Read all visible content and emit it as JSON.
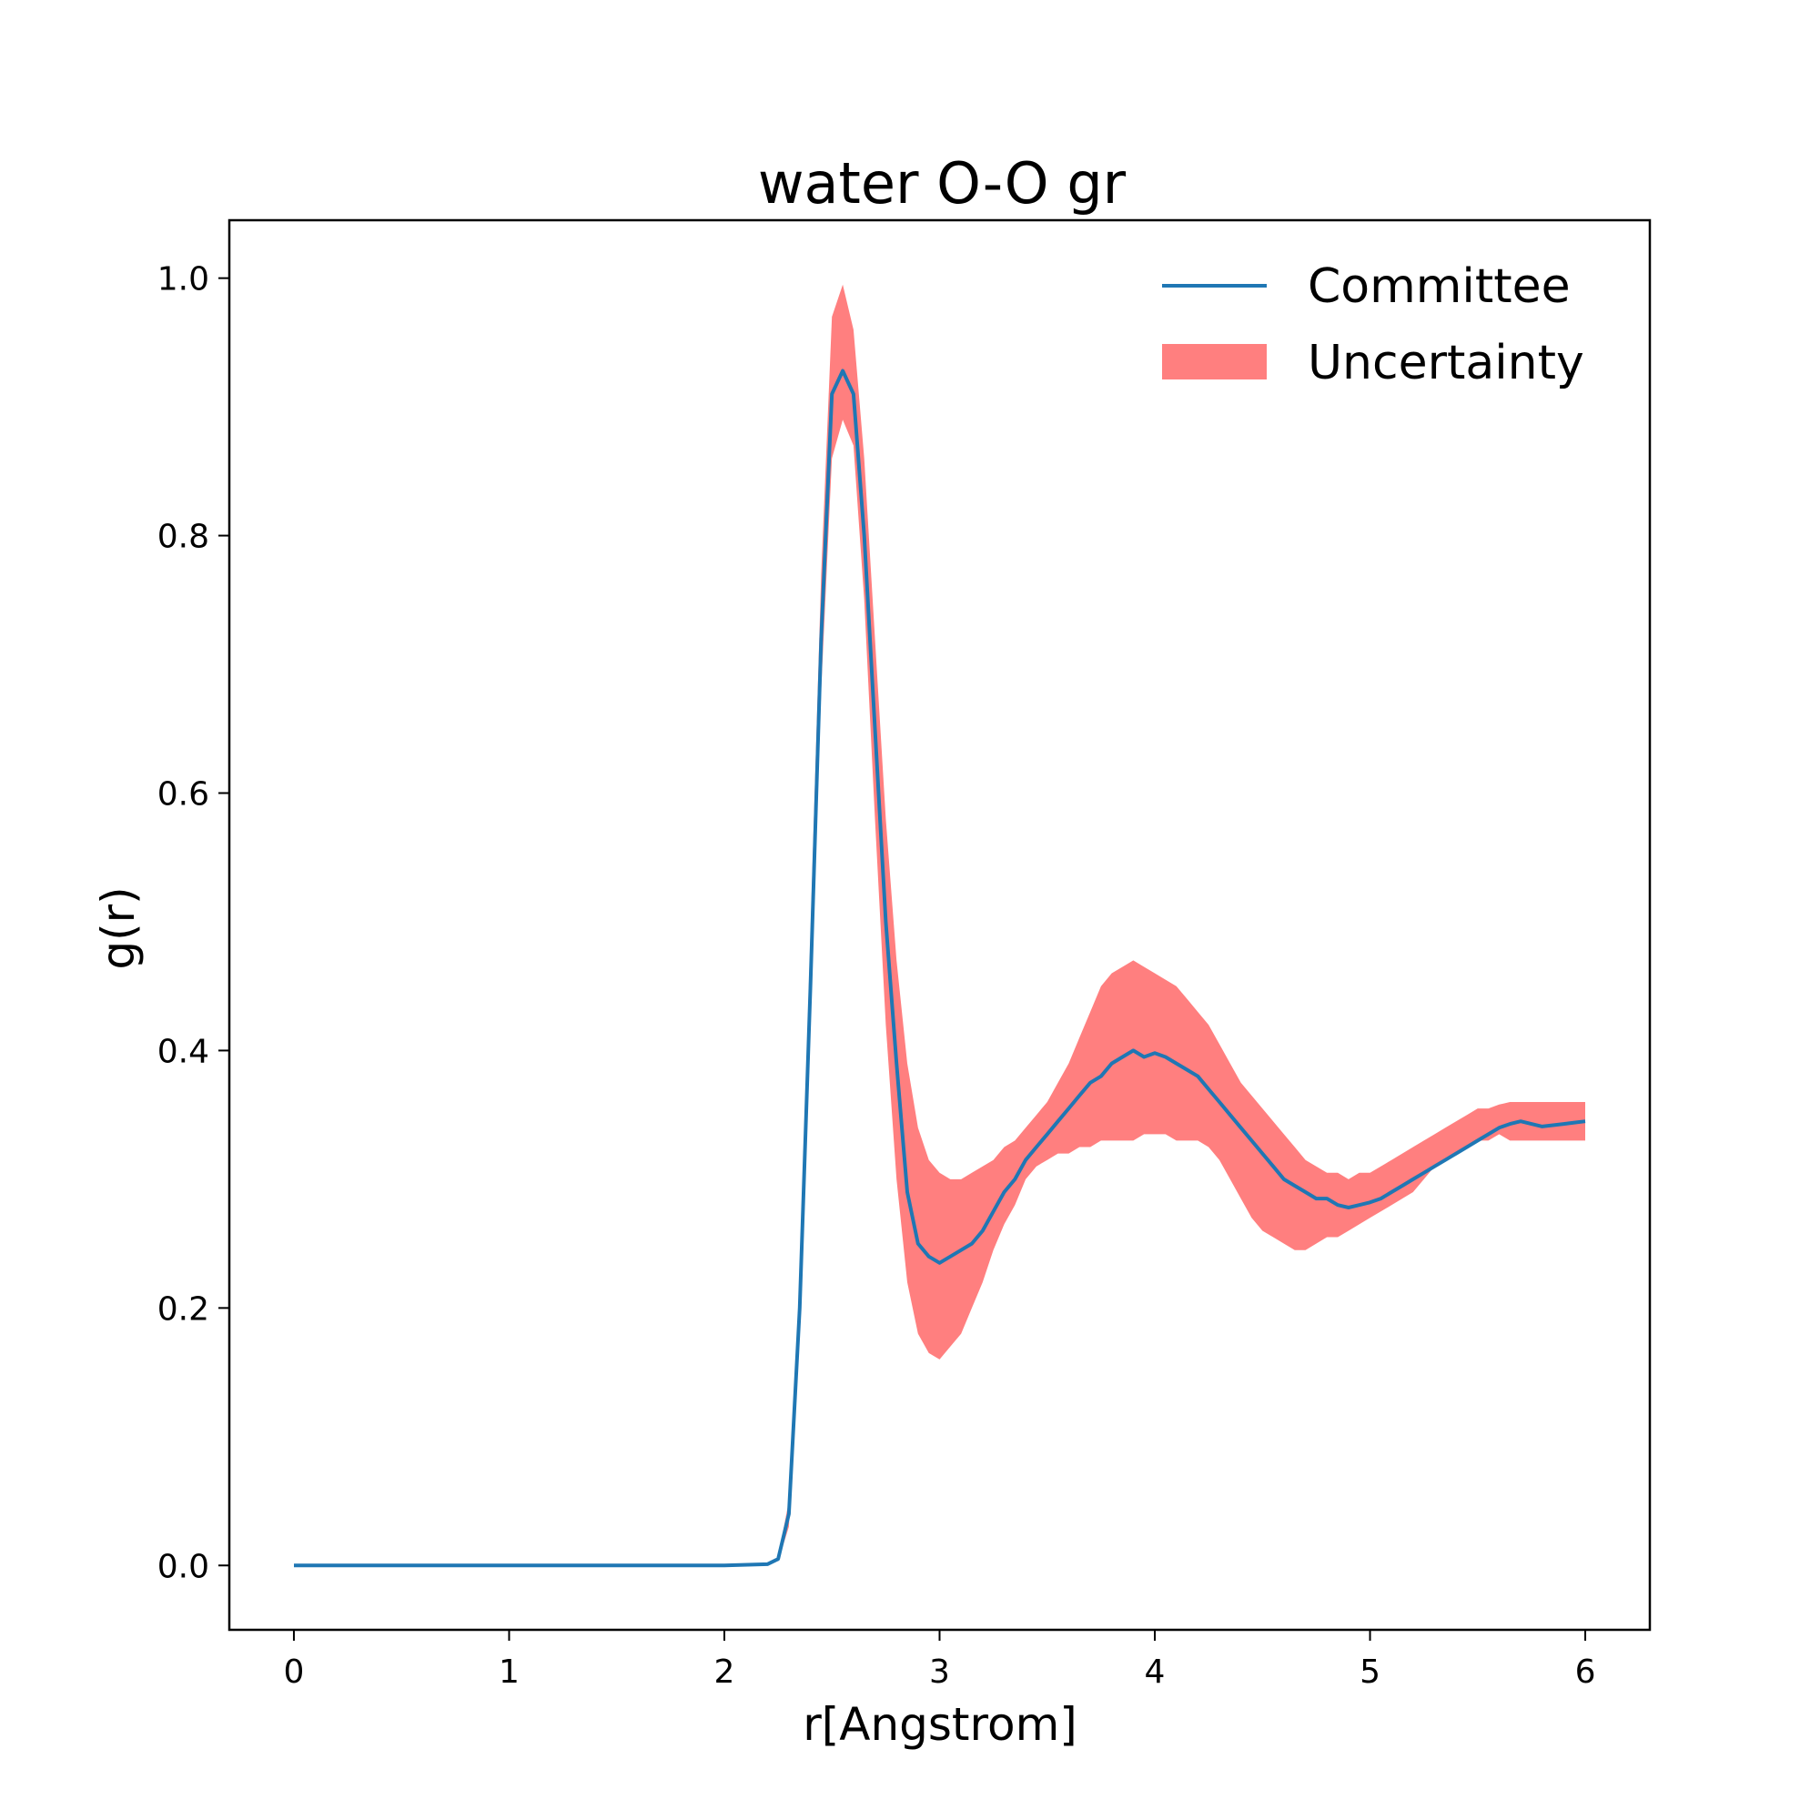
{
  "chart_data": {
    "type": "line",
    "title": "water O-O gr",
    "xlabel": "r[Angstrom]",
    "ylabel": "g(r)",
    "xlim": [
      -0.3,
      6.3
    ],
    "ylim": [
      -0.05,
      1.045
    ],
    "xticks": [
      0,
      1,
      2,
      3,
      4,
      5,
      6
    ],
    "xtick_labels": [
      "0",
      "1",
      "2",
      "3",
      "4",
      "5",
      "6"
    ],
    "yticks": [
      0.0,
      0.2,
      0.4,
      0.6,
      0.8,
      1.0
    ],
    "ytick_labels": [
      "0.0",
      "0.2",
      "0.4",
      "0.6",
      "0.8",
      "1.0"
    ],
    "grid": false,
    "legend": {
      "position": "top-right",
      "entries": [
        "Committee",
        "Uncertainty"
      ]
    },
    "colors": {
      "Committee": "#1f77b4",
      "Uncertainty": "#ff7f7f"
    },
    "series": [
      {
        "name": "Committee",
        "x": [
          0,
          0.5,
          1.0,
          1.5,
          2.0,
          2.2,
          2.25,
          2.3,
          2.35,
          2.4,
          2.45,
          2.5,
          2.55,
          2.6,
          2.65,
          2.7,
          2.75,
          2.8,
          2.85,
          2.9,
          2.95,
          3.0,
          3.05,
          3.1,
          3.15,
          3.2,
          3.25,
          3.3,
          3.35,
          3.4,
          3.45,
          3.5,
          3.55,
          3.6,
          3.65,
          3.7,
          3.75,
          3.8,
          3.85,
          3.9,
          3.95,
          4.0,
          4.05,
          4.1,
          4.15,
          4.2,
          4.25,
          4.3,
          4.35,
          4.4,
          4.45,
          4.5,
          4.55,
          4.6,
          4.65,
          4.7,
          4.75,
          4.8,
          4.85,
          4.9,
          4.95,
          5.0,
          5.05,
          5.1,
          5.15,
          5.2,
          5.25,
          5.3,
          5.35,
          5.4,
          5.45,
          5.5,
          5.55,
          5.6,
          5.65,
          5.7,
          5.75,
          5.8,
          5.85,
          5.9,
          5.95,
          6.0
        ],
        "y": [
          0,
          0,
          0,
          0,
          0,
          0.001,
          0.005,
          0.04,
          0.2,
          0.45,
          0.72,
          0.91,
          0.928,
          0.91,
          0.8,
          0.65,
          0.5,
          0.39,
          0.29,
          0.25,
          0.24,
          0.235,
          0.24,
          0.245,
          0.25,
          0.26,
          0.275,
          0.29,
          0.3,
          0.315,
          0.325,
          0.335,
          0.345,
          0.355,
          0.365,
          0.375,
          0.38,
          0.39,
          0.395,
          0.4,
          0.395,
          0.398,
          0.395,
          0.39,
          0.385,
          0.38,
          0.37,
          0.36,
          0.35,
          0.34,
          0.33,
          0.32,
          0.31,
          0.3,
          0.295,
          0.29,
          0.285,
          0.285,
          0.28,
          0.278,
          0.28,
          0.282,
          0.285,
          0.29,
          0.295,
          0.3,
          0.305,
          0.31,
          0.315,
          0.32,
          0.325,
          0.33,
          0.335,
          0.34,
          0.343,
          0.345,
          0.343,
          0.341,
          0.342,
          0.343,
          0.344,
          0.345
        ]
      },
      {
        "name": "Uncertainty",
        "x": [
          2.25,
          2.3,
          2.35,
          2.4,
          2.45,
          2.5,
          2.55,
          2.6,
          2.65,
          2.7,
          2.75,
          2.8,
          2.85,
          2.9,
          2.95,
          3.0,
          3.05,
          3.1,
          3.15,
          3.2,
          3.25,
          3.3,
          3.35,
          3.4,
          3.45,
          3.5,
          3.55,
          3.6,
          3.65,
          3.7,
          3.75,
          3.8,
          3.85,
          3.9,
          3.95,
          4.0,
          4.05,
          4.1,
          4.15,
          4.2,
          4.25,
          4.3,
          4.35,
          4.4,
          4.45,
          4.5,
          4.55,
          4.6,
          4.65,
          4.7,
          4.75,
          4.8,
          4.85,
          4.9,
          4.95,
          5.0,
          5.05,
          5.1,
          5.15,
          5.2,
          5.25,
          5.3,
          5.35,
          5.4,
          5.45,
          5.5,
          5.55,
          5.6,
          5.65,
          5.7,
          5.75,
          5.8,
          5.85,
          5.9,
          5.95,
          6.0
        ],
        "lower": [
          0.003,
          0.03,
          0.18,
          0.42,
          0.68,
          0.86,
          0.89,
          0.87,
          0.75,
          0.58,
          0.42,
          0.3,
          0.22,
          0.18,
          0.165,
          0.16,
          0.17,
          0.18,
          0.2,
          0.22,
          0.245,
          0.265,
          0.28,
          0.3,
          0.31,
          0.315,
          0.32,
          0.32,
          0.325,
          0.325,
          0.33,
          0.33,
          0.33,
          0.33,
          0.335,
          0.335,
          0.335,
          0.33,
          0.33,
          0.33,
          0.325,
          0.315,
          0.3,
          0.285,
          0.27,
          0.26,
          0.255,
          0.25,
          0.245,
          0.245,
          0.25,
          0.255,
          0.255,
          0.26,
          0.265,
          0.27,
          0.275,
          0.28,
          0.285,
          0.29,
          0.3,
          0.31,
          0.315,
          0.32,
          0.325,
          0.33,
          0.33,
          0.335,
          0.33,
          0.33,
          0.33,
          0.33,
          0.33,
          0.33,
          0.33,
          0.33
        ],
        "upper": [
          0.007,
          0.05,
          0.22,
          0.49,
          0.77,
          0.97,
          0.995,
          0.96,
          0.86,
          0.72,
          0.58,
          0.47,
          0.39,
          0.34,
          0.315,
          0.305,
          0.3,
          0.3,
          0.305,
          0.31,
          0.315,
          0.325,
          0.33,
          0.34,
          0.35,
          0.36,
          0.375,
          0.39,
          0.41,
          0.43,
          0.45,
          0.46,
          0.465,
          0.47,
          0.465,
          0.46,
          0.455,
          0.45,
          0.44,
          0.43,
          0.42,
          0.405,
          0.39,
          0.375,
          0.365,
          0.355,
          0.345,
          0.335,
          0.325,
          0.315,
          0.31,
          0.305,
          0.305,
          0.3,
          0.305,
          0.305,
          0.31,
          0.315,
          0.32,
          0.325,
          0.33,
          0.335,
          0.34,
          0.345,
          0.35,
          0.355,
          0.355,
          0.358,
          0.36,
          0.36,
          0.36,
          0.36,
          0.36,
          0.36,
          0.36,
          0.36
        ]
      }
    ]
  }
}
